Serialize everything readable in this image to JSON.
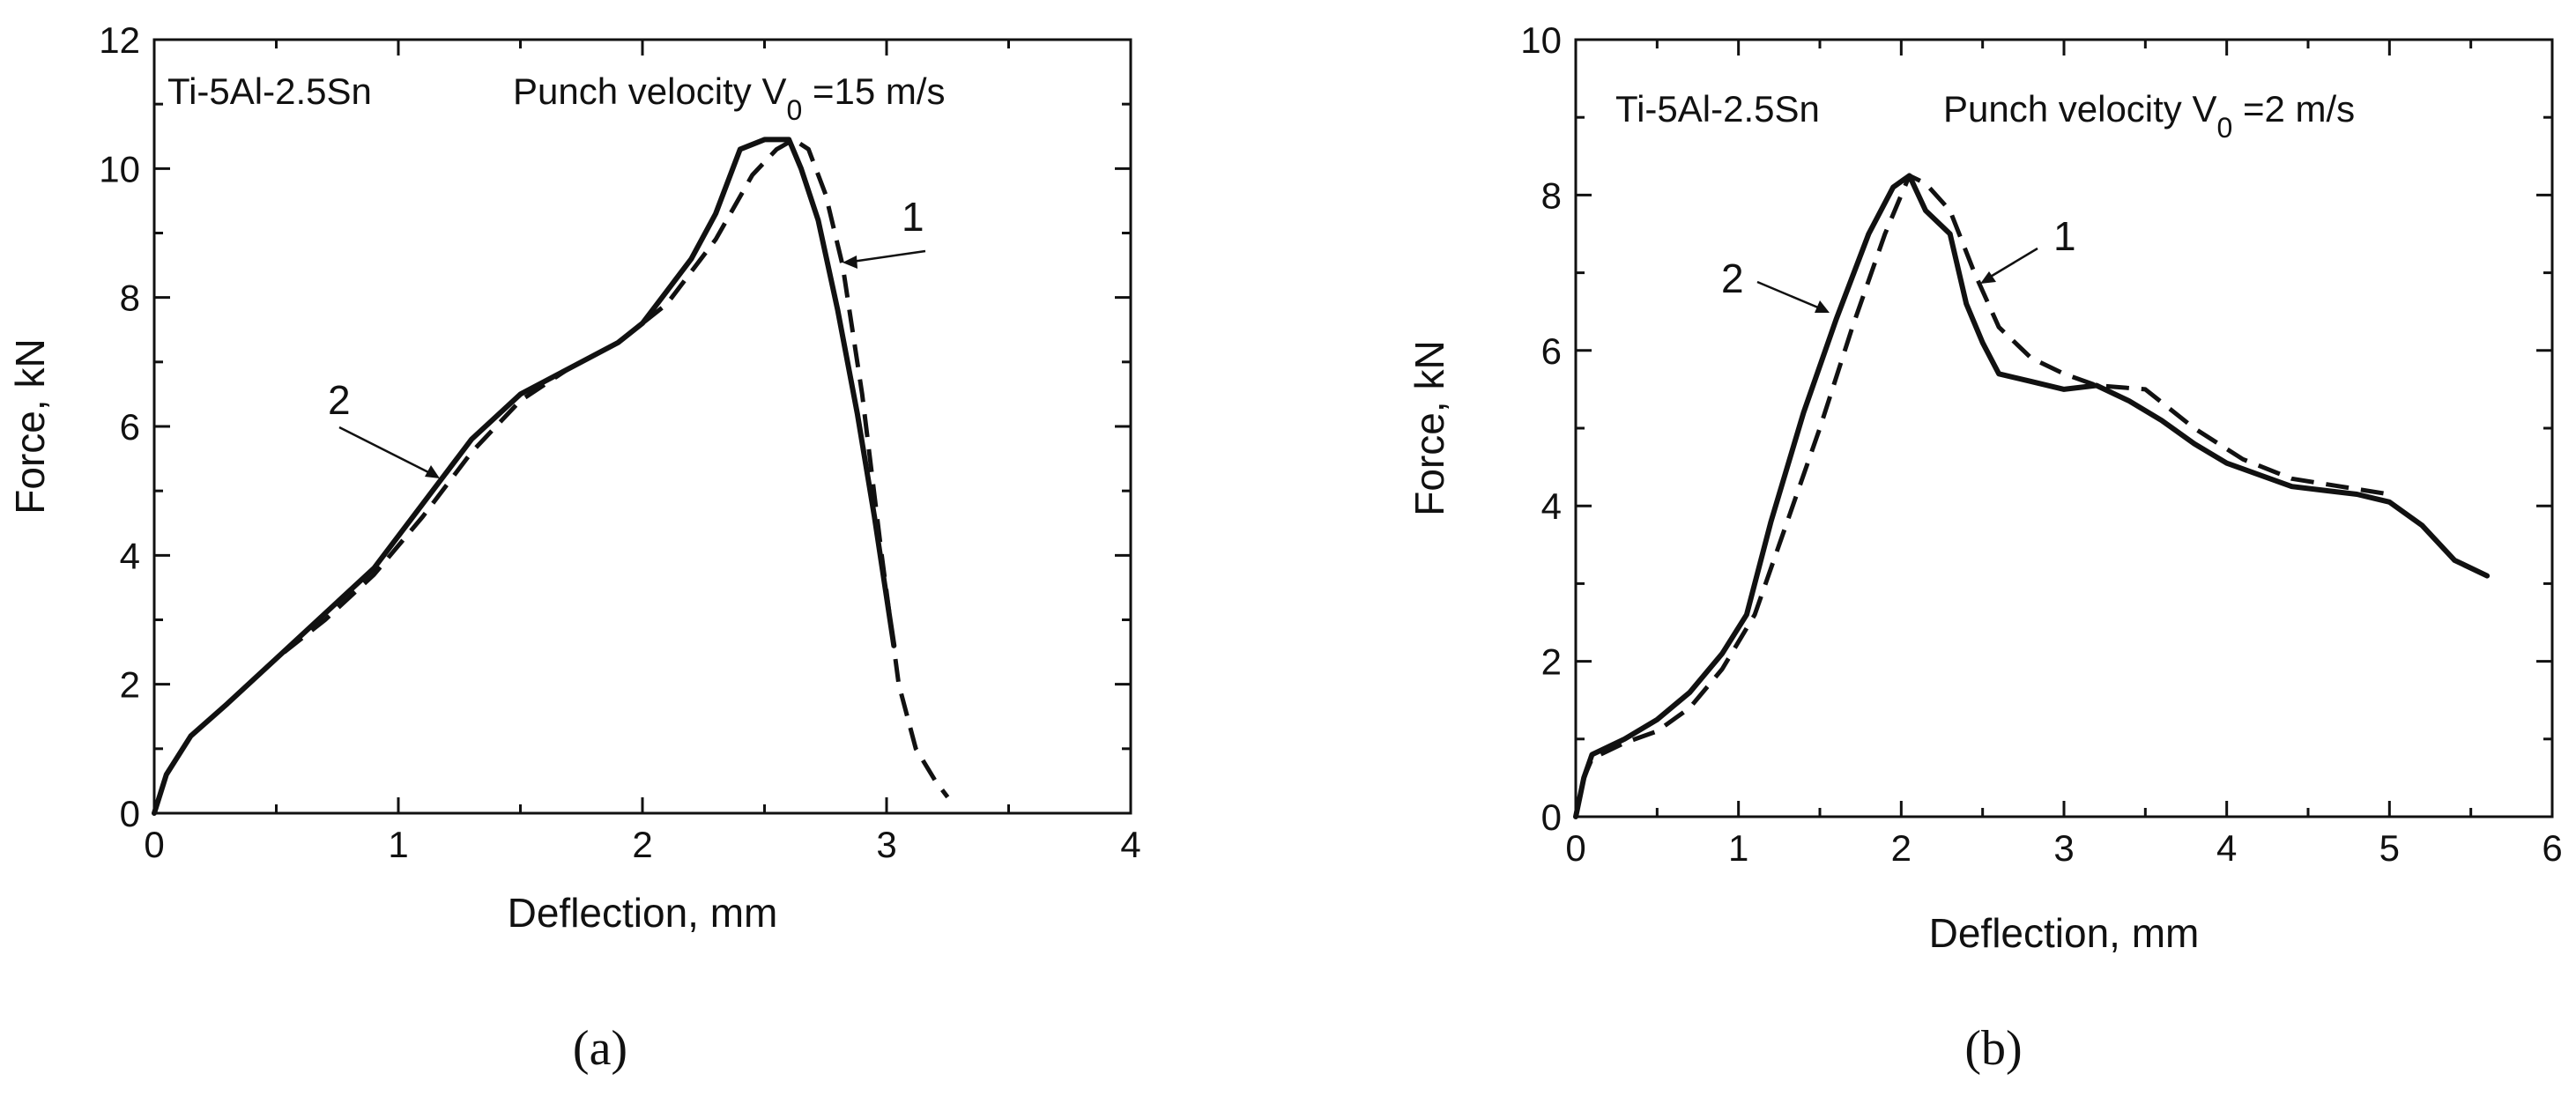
{
  "chart_data": [
    {
      "type": "line",
      "panel_label": "(a)",
      "xlabel": "Deflection, mm",
      "ylabel": "Force, kN",
      "xlim": [
        0,
        4
      ],
      "ylim": [
        0,
        12
      ],
      "xticks": [
        0,
        1,
        2,
        3,
        4
      ],
      "yticks": [
        0,
        2,
        4,
        6,
        8,
        10,
        12
      ],
      "annotation": {
        "material": "Ti-5Al-2.5Sn",
        "velocity_prefix": "Punch velocity V",
        "velocity_sub": "0",
        "velocity_suffix": " =15 m/s"
      },
      "curve_labels": [
        {
          "text": "1",
          "series": "1"
        },
        {
          "text": "2",
          "series": "2"
        }
      ],
      "series": [
        {
          "name": "1",
          "style": "dashed",
          "x": [
            0,
            0.05,
            0.15,
            0.3,
            0.5,
            0.7,
            0.9,
            1.1,
            1.3,
            1.5,
            1.7,
            1.9,
            2.1,
            2.3,
            2.45,
            2.55,
            2.62,
            2.68,
            2.75,
            2.82,
            2.9,
            2.98,
            3.05,
            3.12,
            3.2,
            3.25
          ],
          "y": [
            0,
            0.6,
            1.2,
            1.7,
            2.4,
            3.0,
            3.7,
            4.6,
            5.6,
            6.4,
            6.9,
            7.3,
            7.9,
            8.9,
            9.9,
            10.3,
            10.45,
            10.3,
            9.6,
            8.5,
            6.5,
            4.0,
            2.0,
            1.0,
            0.5,
            0.25
          ]
        },
        {
          "name": "2",
          "style": "solid",
          "x": [
            0,
            0.05,
            0.15,
            0.3,
            0.5,
            0.7,
            0.9,
            1.1,
            1.3,
            1.5,
            1.7,
            1.9,
            2.0,
            2.1,
            2.2,
            2.3,
            2.4,
            2.5,
            2.6,
            2.65,
            2.72,
            2.8,
            2.88,
            2.95,
            3.03
          ],
          "y": [
            0,
            0.6,
            1.2,
            1.7,
            2.4,
            3.1,
            3.8,
            4.8,
            5.8,
            6.5,
            6.9,
            7.3,
            7.6,
            8.1,
            8.6,
            9.3,
            10.3,
            10.45,
            10.45,
            10.0,
            9.2,
            7.8,
            6.2,
            4.6,
            2.6
          ]
        }
      ]
    },
    {
      "type": "line",
      "panel_label": "(b)",
      "xlabel": "Deflection, mm",
      "ylabel": "Force, kN",
      "xlim": [
        0,
        6
      ],
      "ylim": [
        0,
        10
      ],
      "xticks": [
        0,
        1,
        2,
        3,
        4,
        5,
        6
      ],
      "yticks": [
        0,
        2,
        4,
        6,
        8,
        10
      ],
      "annotation": {
        "material": "Ti-5Al-2.5Sn",
        "velocity_prefix": "Punch velocity  V",
        "velocity_sub": "0",
        "velocity_suffix": " =2 m/s"
      },
      "curve_labels": [
        {
          "text": "1",
          "series": "1"
        },
        {
          "text": "2",
          "series": "2"
        }
      ],
      "series": [
        {
          "name": "1",
          "style": "dashed",
          "x": [
            0,
            0.05,
            0.1,
            0.3,
            0.5,
            0.7,
            0.9,
            1.1,
            1.3,
            1.5,
            1.7,
            1.9,
            2.05,
            2.15,
            2.3,
            2.45,
            2.6,
            2.8,
            3.0,
            3.2,
            3.5,
            3.8,
            4.1,
            4.4,
            4.7,
            5.0
          ],
          "y": [
            0,
            0.5,
            0.75,
            0.95,
            1.1,
            1.4,
            1.9,
            2.6,
            3.8,
            5.0,
            6.3,
            7.5,
            8.25,
            8.15,
            7.8,
            7.0,
            6.3,
            5.9,
            5.7,
            5.55,
            5.5,
            5.0,
            4.6,
            4.35,
            4.25,
            4.15
          ]
        },
        {
          "name": "2",
          "style": "solid",
          "x": [
            0,
            0.05,
            0.1,
            0.3,
            0.5,
            0.7,
            0.9,
            1.05,
            1.2,
            1.4,
            1.6,
            1.8,
            1.95,
            2.05,
            2.15,
            2.3,
            2.4,
            2.5,
            2.6,
            2.8,
            3.0,
            3.2,
            3.4,
            3.6,
            3.8,
            4.0,
            4.2,
            4.4,
            4.6,
            4.8,
            5.0,
            5.2,
            5.4,
            5.6
          ],
          "y": [
            0,
            0.5,
            0.8,
            1.0,
            1.25,
            1.6,
            2.1,
            2.6,
            3.8,
            5.2,
            6.4,
            7.5,
            8.1,
            8.25,
            7.8,
            7.5,
            6.6,
            6.1,
            5.7,
            5.6,
            5.5,
            5.55,
            5.35,
            5.1,
            4.8,
            4.55,
            4.4,
            4.25,
            4.2,
            4.15,
            4.05,
            3.75,
            3.3,
            3.1
          ]
        }
      ]
    }
  ]
}
